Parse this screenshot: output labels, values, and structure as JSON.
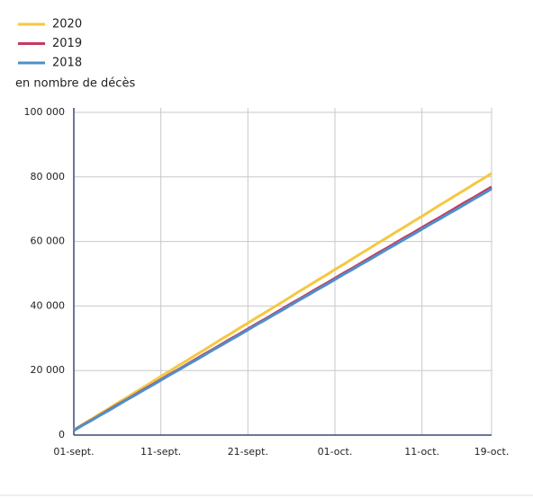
{
  "chart_data": {
    "type": "line",
    "ylabel": "en nombre de décès",
    "x": [
      "01-sept.",
      "02-sept.",
      "03-sept.",
      "04-sept.",
      "05-sept.",
      "06-sept.",
      "07-sept.",
      "08-sept.",
      "09-sept.",
      "10-sept.",
      "11-sept.",
      "12-sept.",
      "13-sept.",
      "14-sept.",
      "15-sept.",
      "16-sept.",
      "17-sept.",
      "18-sept.",
      "19-sept.",
      "20-sept.",
      "21-sept.",
      "22-sept.",
      "23-sept.",
      "24-sept.",
      "25-sept.",
      "26-sept.",
      "27-sept.",
      "28-sept.",
      "29-sept.",
      "30-sept.",
      "01-oct.",
      "02-oct.",
      "03-oct.",
      "04-oct.",
      "05-oct.",
      "06-oct.",
      "07-oct.",
      "08-oct.",
      "09-oct.",
      "10-oct.",
      "11-oct.",
      "12-oct.",
      "13-oct.",
      "14-oct.",
      "15-oct.",
      "16-oct.",
      "17-oct.",
      "18-oct.",
      "19-oct."
    ],
    "xticks": [
      "01-sept.",
      "11-sept.",
      "21-sept.",
      "01-oct.",
      "11-oct.",
      "19-oct."
    ],
    "series": [
      {
        "name": "2020",
        "color": "#f5c842",
        "values": [
          1600,
          3300,
          4900,
          6600,
          8200,
          9900,
          11500,
          13200,
          14800,
          16500,
          18200,
          19800,
          21500,
          23100,
          24800,
          26400,
          28100,
          29800,
          31400,
          33100,
          34700,
          36400,
          38000,
          39700,
          41300,
          43000,
          44700,
          46300,
          48000,
          49600,
          51300,
          52900,
          54600,
          56300,
          57900,
          59600,
          61200,
          62900,
          64500,
          66200,
          67800,
          69500,
          71200,
          72800,
          74500,
          76100,
          77800,
          79400,
          81100
        ]
      },
      {
        "name": "2019",
        "color": "#c9385e",
        "values": [
          1500,
          3100,
          4600,
          6200,
          7800,
          9400,
          10900,
          12500,
          14100,
          15600,
          17200,
          18800,
          20300,
          21900,
          23500,
          25100,
          26600,
          28200,
          29800,
          31300,
          32900,
          34500,
          36000,
          37600,
          39200,
          40800,
          42300,
          43900,
          45500,
          47000,
          48600,
          50200,
          51700,
          53300,
          54900,
          56500,
          58000,
          59600,
          61200,
          62700,
          64300,
          65900,
          67400,
          69000,
          70600,
          72200,
          73700,
          75300,
          76900
        ]
      },
      {
        "name": "2018",
        "color": "#4f8fc9",
        "values": [
          1400,
          3000,
          4500,
          6100,
          7600,
          9200,
          10800,
          12300,
          13900,
          15400,
          17000,
          18600,
          20100,
          21700,
          23200,
          24800,
          26400,
          27900,
          29500,
          31000,
          32600,
          34200,
          35700,
          37300,
          38800,
          40400,
          42000,
          43500,
          45100,
          46600,
          48200,
          49800,
          51300,
          52900,
          54400,
          56000,
          57600,
          59100,
          60700,
          62200,
          63800,
          65400,
          66900,
          68500,
          70000,
          71600,
          73200,
          74700,
          76300
        ]
      }
    ],
    "ylim": [
      0,
      100000
    ],
    "yticks": [
      0,
      {
        "value": 20000,
        "label": "20 000"
      },
      {
        "value": 40000,
        "label": "40 000"
      },
      {
        "value": 60000,
        "label": "60 000"
      },
      {
        "value": 80000,
        "label": "80 000"
      },
      {
        "value": 100000,
        "label": "100 000"
      }
    ],
    "grid": true
  }
}
